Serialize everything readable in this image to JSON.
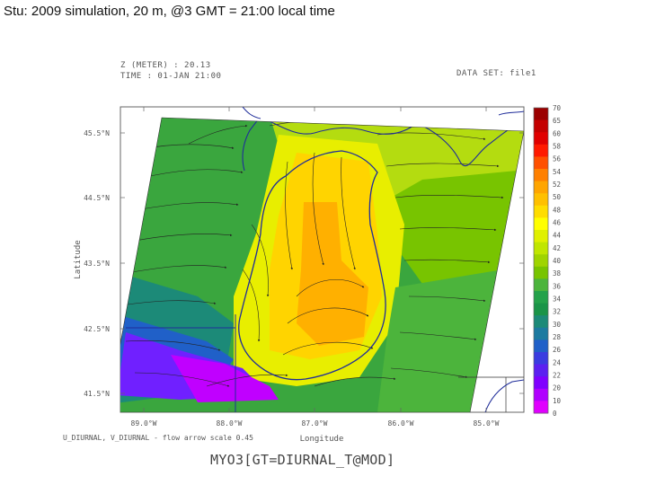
{
  "slide_title": "Stu: 2009 simulation, 20 m, @3 GMT = 21:00 local time",
  "header": {
    "z_label": "Z (METER) : 20.13",
    "time_label": "TIME : 01-JAN 21:00",
    "dataset_label": "DATA SET: file1"
  },
  "map": {
    "y_axis_title": "Latitude",
    "x_axis_title": "Longitude",
    "lat_ticks": [
      "45.5°N",
      "44.5°N",
      "43.5°N",
      "42.5°N",
      "41.5°N"
    ],
    "lon_ticks": [
      "89.0°W",
      "88.0°W",
      "87.0°W",
      "86.0°W",
      "85.0°W"
    ],
    "vector_note": "U_DIURNAL, V_DIURNAL - flow arrow scale 0.45"
  },
  "colorbar": {
    "labels": [
      "70",
      "65",
      "60",
      "58",
      "56",
      "54",
      "52",
      "50",
      "48",
      "46",
      "44",
      "42",
      "40",
      "38",
      "36",
      "34",
      "32",
      "30",
      "28",
      "26",
      "24",
      "22",
      "20",
      "10",
      "0"
    ],
    "colors": [
      "#9b0000",
      "#c40000",
      "#e00000",
      "#ff1a00",
      "#ff5000",
      "#ff8000",
      "#ffa500",
      "#ffc000",
      "#ffdd00",
      "#ffff00",
      "#e0f000",
      "#c0e600",
      "#9fd400",
      "#78c400",
      "#4cb43c",
      "#24a24a",
      "#1a9448",
      "#1c8a78",
      "#1c7aa0",
      "#2060c8",
      "#3a3ce0",
      "#5c20f0",
      "#8000ff",
      "#b000ff",
      "#e000ff"
    ]
  },
  "command": "MYO3[GT=DIURNAL_T@MOD]"
}
